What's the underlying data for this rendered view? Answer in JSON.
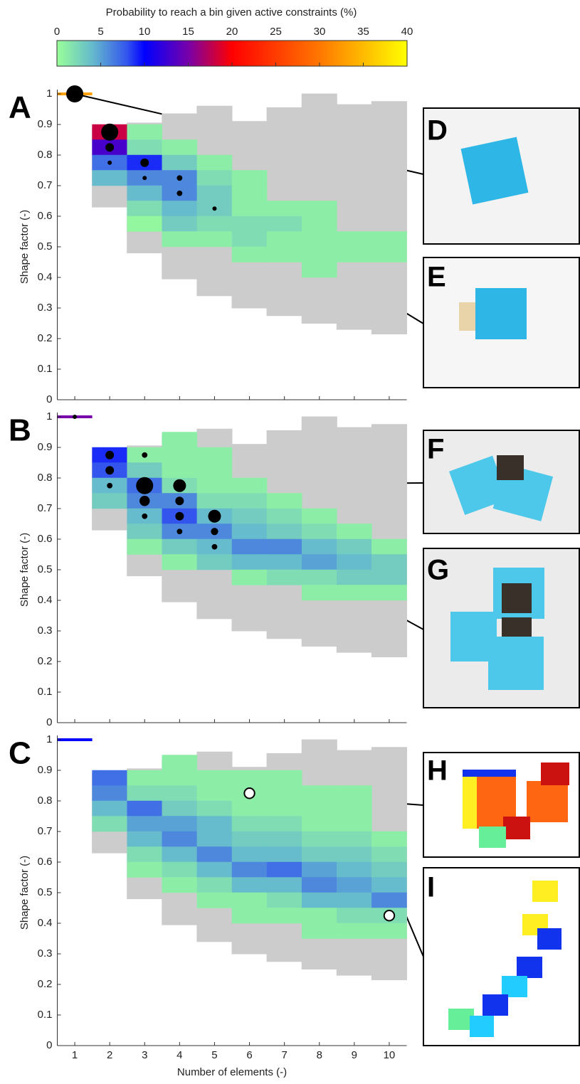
{
  "colorbar": {
    "title": "Probability to reach a bin given active constraints (%)",
    "lim": [
      0,
      40
    ],
    "ticks": [
      0,
      5,
      10,
      15,
      20,
      25,
      30,
      35,
      40
    ],
    "stops": [
      {
        "value": 0,
        "color": "#99ff99"
      },
      {
        "value": 4,
        "color": "#66bbcc"
      },
      {
        "value": 8,
        "color": "#3355ee"
      },
      {
        "value": 10,
        "color": "#0000ff"
      },
      {
        "value": 15,
        "color": "#7700aa"
      },
      {
        "value": 20,
        "color": "#ff0000"
      },
      {
        "value": 30,
        "color": "#ff7700"
      },
      {
        "value": 40,
        "color": "#ffff00"
      }
    ]
  },
  "chart_data": [
    {
      "type": "heatmap",
      "panel_label": "A",
      "ylabel": "Shape factor (-)",
      "xlim": [
        0.5,
        10.5
      ],
      "ylim": [
        0,
        1
      ],
      "xticks": [
        1,
        2,
        3,
        4,
        5,
        6,
        7,
        8,
        9,
        10
      ],
      "show_xtick_labels": false,
      "yticks": [
        0,
        0.1,
        0.2,
        0.3,
        0.4,
        0.5,
        0.6,
        0.7,
        0.8,
        0.9,
        1
      ],
      "ybin": 0.05,
      "envelope": {
        "x": [
          2,
          3,
          4,
          5,
          6,
          7,
          8,
          9,
          10
        ],
        "low": [
          0.63,
          0.48,
          0.395,
          0.34,
          0.3,
          0.275,
          0.25,
          0.23,
          0.215
        ],
        "high": [
          0.89,
          0.905,
          0.935,
          0.96,
          0.91,
          0.955,
          1,
          0.965,
          0.975
        ]
      },
      "cells": {
        "x": [
          1,
          2,
          2,
          2,
          2,
          3,
          3,
          3,
          3,
          3,
          3,
          3,
          4,
          4,
          4,
          4,
          4,
          4,
          4,
          5,
          5,
          5,
          5,
          5,
          5,
          6,
          6,
          6,
          6,
          6,
          6,
          7,
          7,
          7,
          7,
          8,
          8,
          8,
          8,
          8,
          9,
          9,
          10,
          10
        ],
        "y": [
          1,
          0.875,
          0.825,
          0.775,
          0.725,
          0.875,
          0.825,
          0.775,
          0.725,
          0.675,
          0.625,
          0.575,
          0.825,
          0.775,
          0.725,
          0.675,
          0.625,
          0.575,
          0.525,
          0.775,
          0.725,
          0.675,
          0.625,
          0.575,
          0.525,
          0.725,
          0.675,
          0.625,
          0.575,
          0.525,
          0.475,
          0.625,
          0.575,
          0.525,
          0.475,
          0.625,
          0.575,
          0.525,
          0.475,
          0.425,
          0.525,
          0.475,
          0.525,
          0.475
        ],
        "values": [
          33,
          18,
          13,
          7,
          4,
          1,
          2,
          9,
          6,
          4,
          2,
          0.5,
          1,
          3,
          6,
          6,
          4,
          3,
          1,
          1,
          2,
          3,
          3,
          2,
          1,
          1,
          1,
          1,
          2,
          2,
          1,
          1,
          2,
          1,
          1,
          1,
          1,
          1,
          1,
          1,
          1,
          1,
          1,
          1
        ]
      },
      "markers": {
        "x": [
          1,
          2,
          2,
          2,
          3,
          3,
          4,
          4,
          5
        ],
        "y": [
          1,
          0.875,
          0.825,
          0.775,
          0.775,
          0.725,
          0.725,
          0.675,
          0.625
        ],
        "size": [
          4,
          4,
          2,
          1,
          2,
          1,
          1.3,
          1.3,
          1
        ]
      },
      "hollow_markers": false,
      "photo_labels": [
        "D",
        "E"
      ]
    },
    {
      "type": "heatmap",
      "panel_label": "B",
      "ylabel": "Shape factor (-)",
      "xlim": [
        0.5,
        10.5
      ],
      "ylim": [
        0,
        1
      ],
      "xticks": [
        1,
        2,
        3,
        4,
        5,
        6,
        7,
        8,
        9,
        10
      ],
      "show_xtick_labels": false,
      "yticks": [
        0,
        0.1,
        0.2,
        0.3,
        0.4,
        0.5,
        0.6,
        0.7,
        0.8,
        0.9,
        1
      ],
      "ybin": 0.05,
      "envelope": {
        "x": [
          2,
          3,
          4,
          5,
          6,
          7,
          8,
          9,
          10
        ],
        "low": [
          0.63,
          0.48,
          0.395,
          0.34,
          0.3,
          0.275,
          0.25,
          0.23,
          0.215
        ],
        "high": [
          0.89,
          0.905,
          0.935,
          0.96,
          0.91,
          0.955,
          1,
          0.965,
          0.975
        ]
      },
      "cells": {
        "x": [
          1,
          2,
          2,
          2,
          2,
          3,
          3,
          3,
          3,
          3,
          3,
          3,
          4,
          4,
          4,
          4,
          4,
          4,
          4,
          4,
          4,
          5,
          5,
          5,
          5,
          5,
          5,
          5,
          5,
          6,
          6,
          6,
          6,
          6,
          6,
          6,
          7,
          7,
          7,
          7,
          7,
          7,
          8,
          8,
          8,
          8,
          8,
          8,
          9,
          9,
          9,
          9,
          9,
          10,
          10,
          10,
          10
        ],
        "y": [
          1,
          0.875,
          0.825,
          0.775,
          0.725,
          0.875,
          0.825,
          0.775,
          0.725,
          0.675,
          0.625,
          0.575,
          0.925,
          0.875,
          0.825,
          0.775,
          0.725,
          0.675,
          0.625,
          0.575,
          0.525,
          0.875,
          0.825,
          0.775,
          0.725,
          0.675,
          0.625,
          0.575,
          0.525,
          0.775,
          0.725,
          0.675,
          0.625,
          0.575,
          0.525,
          0.475,
          0.725,
          0.675,
          0.625,
          0.575,
          0.525,
          0.475,
          0.675,
          0.625,
          0.575,
          0.525,
          0.475,
          0.425,
          0.625,
          0.575,
          0.525,
          0.475,
          0.425,
          0.575,
          0.525,
          0.475,
          0.425
        ],
        "values": [
          15,
          9,
          8,
          4,
          3,
          1,
          3,
          7,
          6,
          4,
          3,
          1,
          1,
          1,
          1,
          2,
          6,
          8,
          6,
          3,
          1,
          1,
          1,
          1,
          2,
          4,
          6,
          4,
          3,
          1,
          2,
          3,
          4,
          6,
          4,
          1,
          1,
          2,
          3,
          6,
          4,
          2,
          1,
          2,
          4,
          5,
          2,
          1,
          1,
          3,
          4,
          3,
          1,
          1,
          3,
          3,
          1
        ]
      },
      "markers": {
        "x": [
          1,
          2,
          2,
          2,
          3,
          3,
          3,
          3,
          4,
          4,
          4,
          4,
          5,
          5,
          5
        ],
        "y": [
          1,
          0.875,
          0.825,
          0.775,
          0.875,
          0.775,
          0.725,
          0.675,
          0.775,
          0.725,
          0.675,
          0.625,
          0.675,
          0.625,
          0.575
        ],
        "size": [
          1,
          2,
          2,
          1.3,
          1.3,
          4,
          2.4,
          1.3,
          3,
          2,
          2,
          1.3,
          3,
          1.7,
          1.3
        ]
      },
      "hollow_markers": false,
      "photo_labels": [
        "F",
        "G"
      ]
    },
    {
      "type": "heatmap",
      "panel_label": "C",
      "ylabel": "Shape factor (-)",
      "xlabel": "Number of elements (-)",
      "xlim": [
        0.5,
        10.5
      ],
      "ylim": [
        0,
        1
      ],
      "xticks": [
        1,
        2,
        3,
        4,
        5,
        6,
        7,
        8,
        9,
        10
      ],
      "show_xtick_labels": true,
      "yticks": [
        0,
        0.1,
        0.2,
        0.3,
        0.4,
        0.5,
        0.6,
        0.7,
        0.8,
        0.9,
        1
      ],
      "ybin": 0.05,
      "envelope": {
        "x": [
          2,
          3,
          4,
          5,
          6,
          7,
          8,
          9,
          10
        ],
        "low": [
          0.63,
          0.48,
          0.395,
          0.34,
          0.3,
          0.275,
          0.25,
          0.23,
          0.215
        ],
        "high": [
          0.89,
          0.905,
          0.935,
          0.96,
          0.91,
          0.955,
          1,
          0.965,
          0.975
        ]
      },
      "cells": {
        "x": [
          1,
          2,
          2,
          2,
          2,
          3,
          3,
          3,
          3,
          3,
          3,
          3,
          4,
          4,
          4,
          4,
          4,
          4,
          4,
          4,
          4,
          5,
          5,
          5,
          5,
          5,
          5,
          5,
          5,
          5,
          6,
          6,
          6,
          6,
          6,
          6,
          6,
          6,
          6,
          6,
          7,
          7,
          7,
          7,
          7,
          7,
          7,
          7,
          7,
          7,
          8,
          8,
          8,
          8,
          8,
          8,
          8,
          8,
          8,
          8,
          9,
          9,
          9,
          9,
          9,
          9,
          9,
          9,
          9,
          9,
          10,
          10,
          10,
          10,
          10,
          10,
          10
        ],
        "y": [
          1,
          0.875,
          0.825,
          0.775,
          0.725,
          0.875,
          0.825,
          0.775,
          0.725,
          0.675,
          0.625,
          0.575,
          0.925,
          0.875,
          0.825,
          0.775,
          0.725,
          0.675,
          0.625,
          0.575,
          0.525,
          0.875,
          0.825,
          0.775,
          0.725,
          0.675,
          0.625,
          0.575,
          0.525,
          0.475,
          0.875,
          0.825,
          0.775,
          0.725,
          0.675,
          0.625,
          0.575,
          0.525,
          0.475,
          0.425,
          0.875,
          0.825,
          0.775,
          0.725,
          0.675,
          0.625,
          0.575,
          0.525,
          0.475,
          0.425,
          0.825,
          0.775,
          0.725,
          0.675,
          0.625,
          0.575,
          0.525,
          0.475,
          0.425,
          0.375,
          0.825,
          0.775,
          0.725,
          0.675,
          0.625,
          0.575,
          0.525,
          0.475,
          0.425,
          0.375,
          0.675,
          0.625,
          0.575,
          0.525,
          0.475,
          0.425,
          0.375
        ],
        "values": [
          10,
          7,
          6,
          4,
          2,
          1,
          2,
          7,
          5,
          4,
          2,
          1,
          1,
          1,
          2,
          3,
          5,
          6,
          4,
          2,
          1,
          1,
          1,
          2,
          4,
          4,
          6,
          4,
          2,
          1,
          1,
          1,
          1,
          2,
          3,
          4,
          6,
          4,
          1,
          1,
          1,
          1,
          1,
          2,
          3,
          4,
          7,
          4,
          2,
          1,
          1,
          1,
          1,
          2,
          3,
          5,
          6,
          4,
          1,
          1,
          1,
          1,
          1,
          2,
          3,
          4,
          5,
          4,
          2,
          1,
          1,
          2,
          3,
          4,
          6,
          2,
          1
        ]
      },
      "markers": {
        "x": [
          6,
          10
        ],
        "y": [
          0.825,
          0.425
        ],
        "size": [
          2.4,
          2.4
        ]
      },
      "hollow_markers": true,
      "photo_labels": [
        "H",
        "I"
      ]
    }
  ]
}
